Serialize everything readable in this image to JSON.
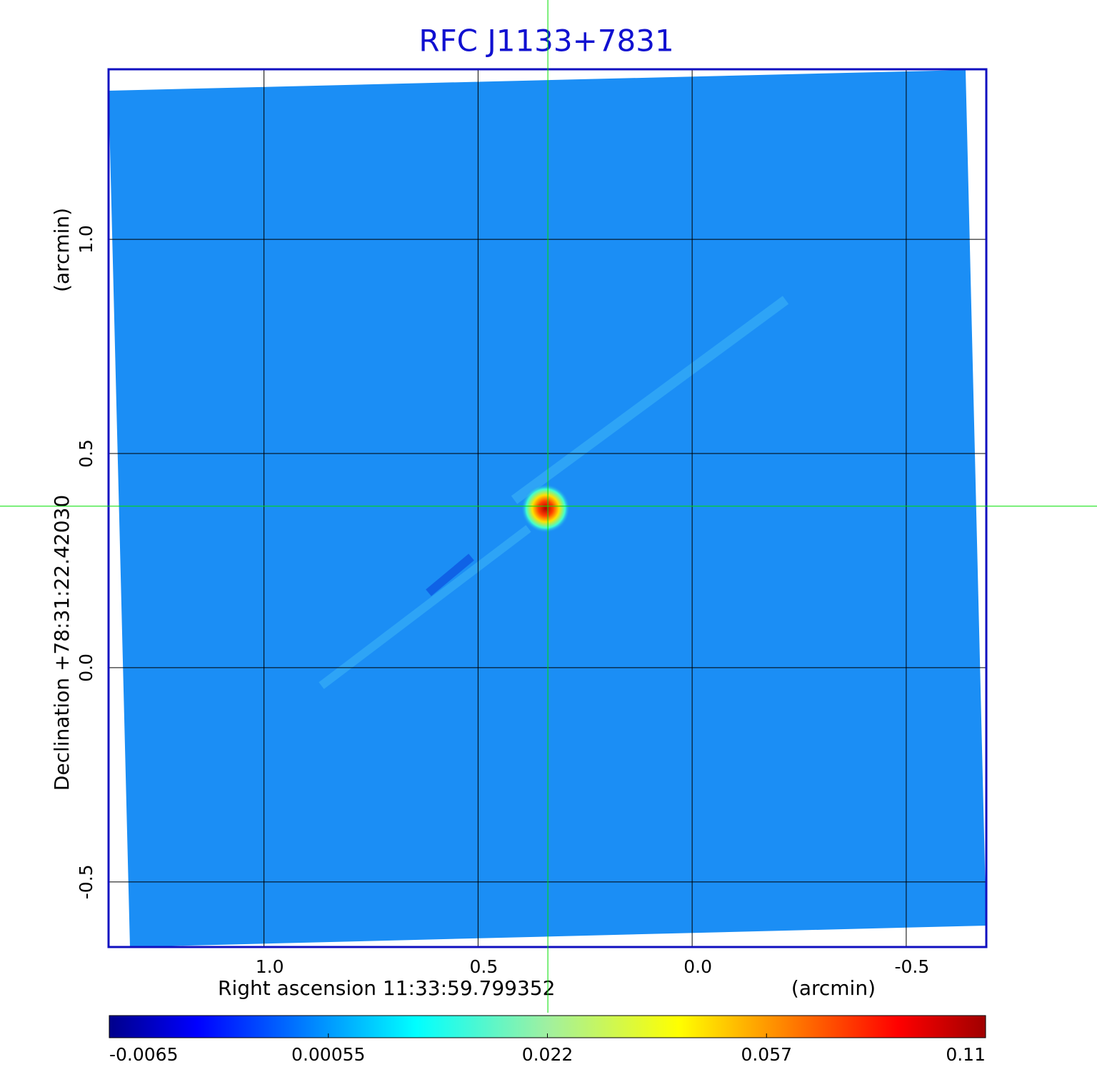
{
  "chart_data": {
    "type": "image",
    "title": "RFC J1133+7831",
    "x_label": "Right ascension  11:33:59.799352",
    "x_unit": "(arcmin)",
    "y_label": "Declination  +78:31:22.42030",
    "y_unit": "(arcmin)",
    "xlim": [
      1.363,
      -0.687
    ],
    "ylim": [
      -0.652,
      1.397
    ],
    "xticks": [
      {
        "value": 1,
        "label": "1.0"
      },
      0.5,
      {
        "value": 0,
        "label": "0.0"
      },
      -0.5
    ],
    "yticks": [
      -0.5,
      {
        "value": 0,
        "label": "0.0"
      },
      0.5,
      {
        "value": 1,
        "label": "1.0"
      }
    ],
    "grid": true,
    "crosshair": {
      "x": 0.337,
      "y": 0.377,
      "color": "#00e000"
    },
    "colorbar": {
      "colormap": "jet",
      "ticks": [
        -0.0065,
        0.00055,
        0.022,
        0.057,
        0.11
      ]
    }
  }
}
